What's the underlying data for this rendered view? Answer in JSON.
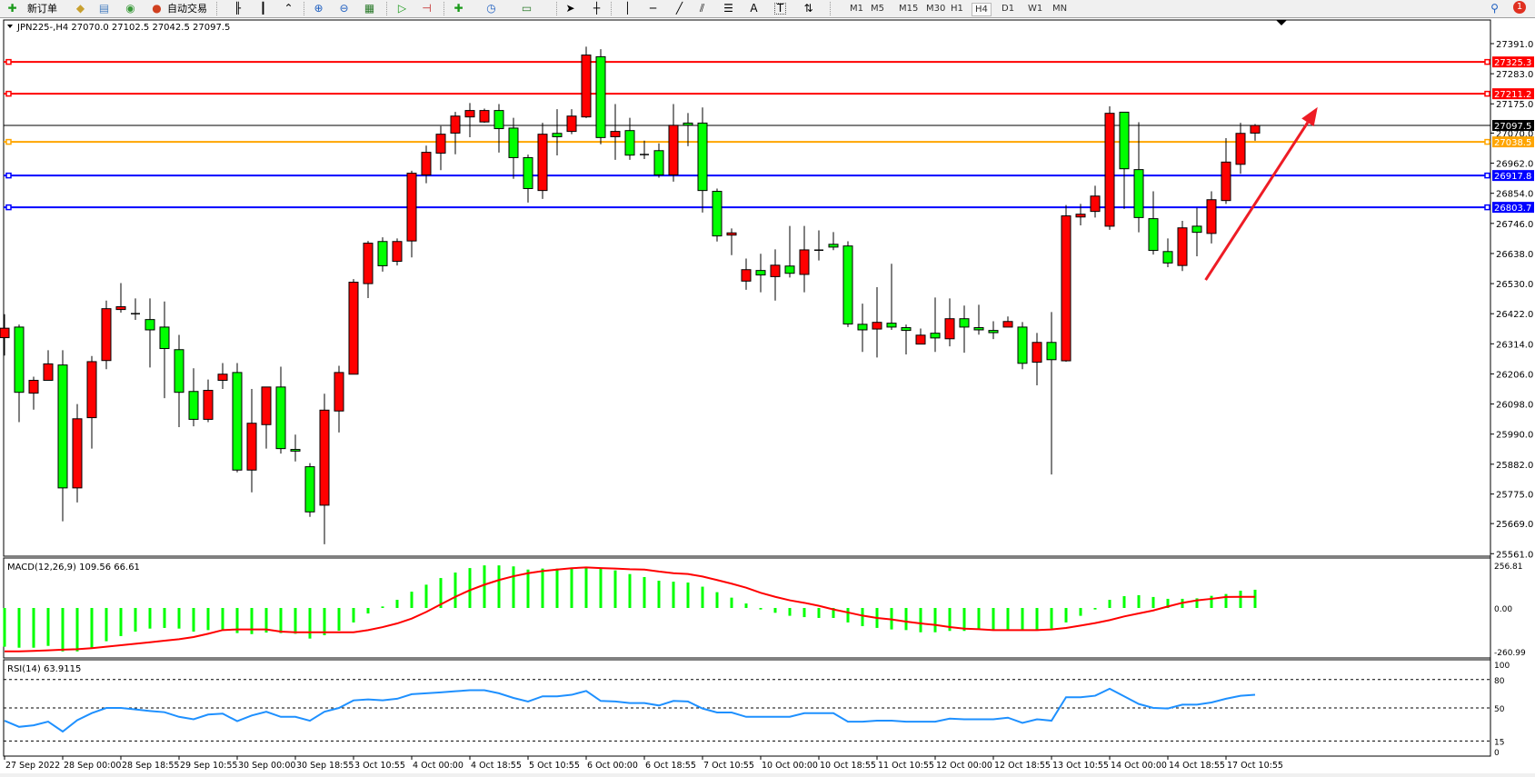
{
  "toolbar": {
    "new_order_label": "新订单",
    "auto_trade_label": "自动交易",
    "icons": [
      "new-order-icon",
      "market-watch-icon",
      "navigator-icon",
      "terminal-icon",
      "auto-trade-icon",
      "bar-chart-icon",
      "candlestick-icon",
      "line-chart-icon",
      "zoom-in-icon",
      "zoom-out-icon",
      "tile-windows-icon",
      "autoscroll-icon",
      "chart-shift-icon",
      "indicators-icon",
      "periods-icon",
      "templates-icon",
      "cursor-icon",
      "crosshair-icon",
      "vertical-line-icon",
      "horizontal-line-icon",
      "trendline-icon",
      "equidistant-channel-icon",
      "fibonacci-icon",
      "text-icon",
      "text-label-icon",
      "arrows-icon",
      "search-icon",
      "notifications-icon"
    ],
    "text_tool_label": "A",
    "label_tool_label": "T",
    "timeframes": [
      "M1",
      "M5",
      "M15",
      "M30",
      "H1",
      "H4",
      "D1",
      "W1",
      "MN"
    ],
    "selected_timeframe": "H4",
    "notification_count": "1"
  },
  "chart_data": [
    {
      "type": "candlestick",
      "title": "JPN225-,H4  27070.0 27102.5 27042.5 27097.5",
      "ylim": [
        25561.0,
        27391.0
      ],
      "y_tick_labels": [
        "27391.0",
        "27283.0",
        "27175.0",
        "27070.0",
        "26962.0",
        "26854.0",
        "26746.0",
        "26638.0",
        "26530.0",
        "26422.0",
        "26314.0",
        "26206.0",
        "26098.0",
        "25990.0",
        "25882.0",
        "25775.0",
        "25669.0",
        "25561.0"
      ],
      "x_tick_labels": [
        "27 Sep 2022",
        "28 Sep 00:00",
        "28 Sep 18:55",
        "29 Sep 10:55",
        "30 Sep 00:00",
        "30 Sep 18:55",
        "3 Oct 10:55",
        "4 Oct 00:00",
        "4 Oct 18:55",
        "5 Oct 10:55",
        "6 Oct 00:00",
        "6 Oct 18:55",
        "7 Oct 10:55",
        "10 Oct 00:00",
        "10 Oct 18:55",
        "11 Oct 10:55",
        "12 Oct 00:00",
        "12 Oct 18:55",
        "13 Oct 10:55",
        "14 Oct 00:00",
        "14 Oct 18:55",
        "17 Oct 10:55"
      ],
      "bullish_color": "#ff0000",
      "bearish_color": "#00ff00",
      "ohlc": [
        [
          26336,
          26420,
          26272,
          26370
        ],
        [
          26374,
          26383,
          26033,
          26140
        ],
        [
          26137,
          26196,
          26078,
          26183
        ],
        [
          26183,
          26291,
          26183,
          26242
        ],
        [
          26238,
          26291,
          25677,
          25797
        ],
        [
          25797,
          26098,
          25745,
          26045
        ],
        [
          26049,
          26270,
          25938,
          26250
        ],
        [
          26254,
          26469,
          26223,
          26440
        ],
        [
          26437,
          26532,
          26426,
          26447
        ],
        [
          26422,
          26477,
          26400,
          26422
        ],
        [
          26401,
          26477,
          26229,
          26364
        ],
        [
          26374,
          26466,
          26119,
          26297
        ],
        [
          26293,
          26346,
          26015,
          26140
        ],
        [
          26143,
          26226,
          26018,
          26043
        ],
        [
          26043,
          26186,
          26033,
          26147
        ],
        [
          26183,
          26245,
          26152,
          26205
        ],
        [
          26211,
          26245,
          25853,
          25861
        ],
        [
          25861,
          26152,
          25781,
          26029
        ],
        [
          26024,
          26159,
          25938,
          26159
        ],
        [
          26159,
          26232,
          25920,
          25938
        ],
        [
          25935,
          25988,
          25892,
          25929
        ],
        [
          25873,
          25886,
          25693,
          25711
        ],
        [
          25735,
          26135,
          25595,
          26076
        ],
        [
          26073,
          26235,
          25996,
          26211
        ],
        [
          26205,
          26546,
          26205,
          26535
        ],
        [
          26530,
          26683,
          26478,
          26675
        ],
        [
          26681,
          26696,
          26573,
          26594
        ],
        [
          26610,
          26692,
          26595,
          26681
        ],
        [
          26683,
          26935,
          26624,
          26926
        ],
        [
          26920,
          27025,
          26890,
          27001
        ],
        [
          26998,
          27095,
          26937,
          27066
        ],
        [
          27070,
          27146,
          26994,
          27131
        ],
        [
          27128,
          27178,
          27055,
          27151
        ],
        [
          27110,
          27158,
          27107,
          27151
        ],
        [
          27151,
          27174,
          27000,
          27086
        ],
        [
          27088,
          27125,
          26906,
          26982
        ],
        [
          26982,
          26993,
          26821,
          26871
        ],
        [
          26864,
          27107,
          26834,
          27066
        ],
        [
          27069,
          27156,
          26990,
          27057
        ],
        [
          27076,
          27156,
          27066,
          27131
        ],
        [
          27128,
          27380,
          27124,
          27350
        ],
        [
          27344,
          27371,
          27030,
          27054
        ],
        [
          27057,
          27174,
          26974,
          27076
        ],
        [
          27079,
          27125,
          26974,
          26991
        ],
        [
          26993,
          27043,
          26977,
          26993
        ],
        [
          27007,
          27033,
          26910,
          26920
        ],
        [
          26920,
          27174,
          26896,
          27098
        ],
        [
          27106,
          27142,
          27023,
          27098
        ],
        [
          27106,
          27162,
          26785,
          26864
        ],
        [
          26861,
          26871,
          26681,
          26701
        ],
        [
          26704,
          26728,
          26632,
          26712
        ],
        [
          26539,
          26620,
          26508,
          26580
        ],
        [
          26577,
          26637,
          26499,
          26561
        ],
        [
          26555,
          26653,
          26469,
          26596
        ],
        [
          26593,
          26737,
          26552,
          26567
        ],
        [
          26563,
          26737,
          26499,
          26651
        ],
        [
          26650,
          26721,
          26613,
          26650
        ],
        [
          26671,
          26715,
          26650,
          26661
        ],
        [
          26665,
          26682,
          26374,
          26385
        ],
        [
          26384,
          26458,
          26285,
          26364
        ],
        [
          26367,
          26517,
          26265,
          26391
        ],
        [
          26388,
          26601,
          26364,
          26374
        ],
        [
          26372,
          26383,
          26276,
          26362
        ],
        [
          26313,
          26369,
          26313,
          26345
        ],
        [
          26352,
          26480,
          26285,
          26335
        ],
        [
          26332,
          26477,
          26305,
          26404
        ],
        [
          26404,
          26451,
          26282,
          26374
        ],
        [
          26372,
          26454,
          26347,
          26364
        ],
        [
          26362,
          26395,
          26331,
          26354
        ],
        [
          26374,
          26412,
          26374,
          26394
        ],
        [
          26374,
          26392,
          26223,
          26244
        ],
        [
          26248,
          26353,
          26165,
          26319
        ],
        [
          26319,
          26428,
          25845,
          26257
        ],
        [
          26253,
          26812,
          26250,
          26773
        ],
        [
          26769,
          26816,
          26739,
          26779
        ],
        [
          26789,
          26881,
          26767,
          26844
        ],
        [
          26736,
          27166,
          26723,
          27141
        ],
        [
          27145,
          27145,
          26798,
          26942
        ],
        [
          26939,
          27109,
          26714,
          26767
        ],
        [
          26763,
          26861,
          26634,
          26649
        ],
        [
          26645,
          26692,
          26589,
          26604
        ],
        [
          26595,
          26755,
          26575,
          26730
        ],
        [
          26736,
          26802,
          26628,
          26714
        ],
        [
          26710,
          26861,
          26674,
          26831
        ],
        [
          26828,
          27052,
          26816,
          26966
        ],
        [
          26958,
          27107,
          26924,
          27069
        ],
        [
          27070,
          27102.5,
          27042.5,
          27097.5
        ]
      ],
      "horizontal_lines": [
        {
          "price": 27325.3,
          "label": "27325.3",
          "color": "#ff0000"
        },
        {
          "price": 27211.2,
          "label": "27211.2",
          "color": "#ff0000"
        },
        {
          "price": 27097.5,
          "label": "27097.5",
          "color": "#000000",
          "kind": "bid"
        },
        {
          "price": 27038.5,
          "label": "27038.5",
          "color": "#ffa500"
        },
        {
          "price": 26917.8,
          "label": "26917.8",
          "color": "#0000ff"
        },
        {
          "price": 26803.7,
          "label": "26803.7",
          "color": "#0000ff"
        }
      ],
      "annotation_arrow": {
        "color": "#ee1c25",
        "from": {
          "bar": 82.6,
          "price": 26543
        },
        "to": {
          "bar": 90.3,
          "price": 27163
        }
      }
    },
    {
      "type": "bar+line",
      "title": "MACD(12,26,9) 109.56 66.61",
      "ylim": [
        -260.99,
        256.81
      ],
      "y_tick_labels": [
        "256.81",
        "0.00",
        "-260.99"
      ],
      "histogram_color": "#00ff00",
      "signal_color": "#ff0000",
      "macd": [
        -233,
        -239,
        -239,
        -228,
        -261,
        -261,
        -239,
        -200,
        -169,
        -142,
        -124,
        -120,
        -124,
        -142,
        -133,
        -133,
        -151,
        -157,
        -148,
        -151,
        -155,
        -184,
        -164,
        -137,
        -87,
        -33,
        9,
        49,
        98,
        140,
        180,
        213,
        240,
        256,
        256,
        250,
        231,
        237,
        237,
        237,
        244,
        237,
        226,
        204,
        186,
        164,
        158,
        153,
        128,
        95,
        62,
        27,
        -9,
        -29,
        -47,
        -55,
        -60,
        -60,
        -87,
        -109,
        -120,
        -129,
        -133,
        -146,
        -146,
        -138,
        -138,
        -129,
        -129,
        -129,
        -129,
        -129,
        -124,
        -87,
        -47,
        -9,
        49,
        71,
        77,
        66,
        55,
        55,
        58,
        73,
        84,
        104,
        109.56
      ],
      "signal": [
        -261,
        -261,
        -258,
        -255,
        -251,
        -248,
        -242,
        -233,
        -224,
        -215,
        -206,
        -197,
        -188,
        -175,
        -155,
        -133,
        -129,
        -129,
        -129,
        -142,
        -146,
        -146,
        -146,
        -146,
        -146,
        -133,
        -115,
        -93,
        -64,
        -24,
        22,
        67,
        107,
        140,
        168,
        191,
        209,
        222,
        231,
        239,
        244,
        240,
        237,
        233,
        231,
        219,
        209,
        204,
        189,
        168,
        146,
        122,
        91,
        67,
        46,
        31,
        13,
        -9,
        -27,
        -46,
        -60,
        -69,
        -82,
        -93,
        -102,
        -115,
        -124,
        -128,
        -133,
        -133,
        -133,
        -133,
        -129,
        -120,
        -106,
        -91,
        -73,
        -51,
        -33,
        -15,
        9,
        31,
        46,
        55,
        66,
        67,
        66.61
      ]
    },
    {
      "type": "line",
      "title": "RSI(14) 63.9115",
      "ylim": [
        0,
        100
      ],
      "y_tick_labels": [
        "100",
        "80",
        "50",
        "15",
        "0"
      ],
      "levels": [
        80,
        50,
        15
      ],
      "line_color": "#1e90ff",
      "values": [
        36.5,
        30,
        31.6,
        35.5,
        25,
        37,
        44.5,
        50,
        50,
        48.4,
        46.8,
        45.5,
        40.6,
        38,
        43,
        44,
        36,
        42,
        46,
        40.6,
        40.6,
        36.5,
        46,
        50,
        58,
        59,
        58,
        59.7,
        64.5,
        65.5,
        66.5,
        67.7,
        68.7,
        68.7,
        65.5,
        60.6,
        56.8,
        62.3,
        62.3,
        63.9,
        68,
        57.4,
        56.8,
        55.2,
        55.2,
        52.6,
        57.4,
        56.8,
        49.4,
        45.2,
        45.2,
        40.6,
        40.6,
        40.6,
        40.6,
        44.5,
        44.5,
        44.5,
        35.5,
        35.5,
        36.5,
        36.5,
        35.5,
        35.5,
        35.5,
        38.7,
        38,
        38,
        38,
        39.7,
        34.2,
        38,
        36.5,
        61.3,
        61.3,
        62.9,
        70.3,
        62.3,
        54.2,
        50,
        49.4,
        53.5,
        53.5,
        55.8,
        59.7,
        62.9,
        63.9115
      ]
    }
  ]
}
